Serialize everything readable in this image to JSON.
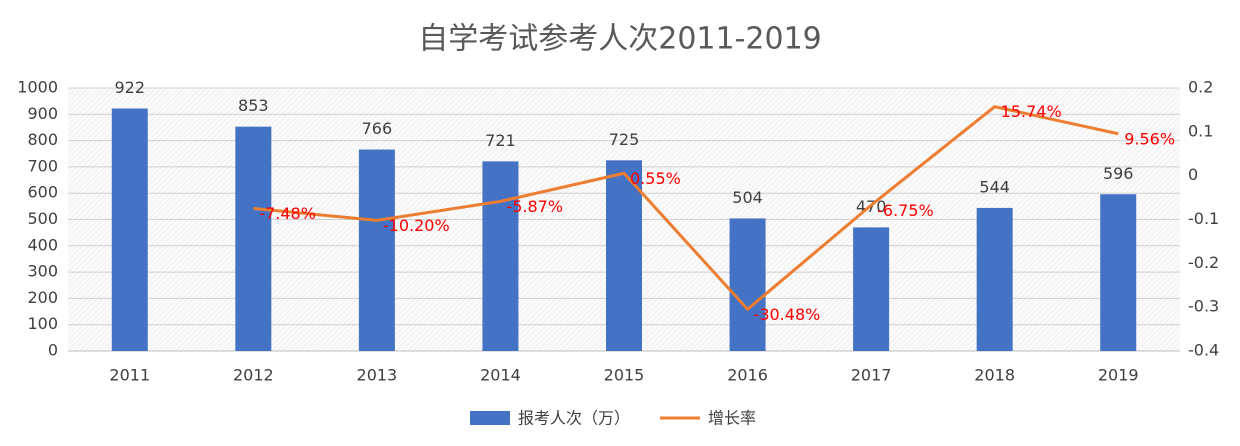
{
  "chart_data": {
    "type": "bar-line",
    "title": "自学考试参考人次2011-2019",
    "categories": [
      "2011",
      "2012",
      "2013",
      "2014",
      "2015",
      "2016",
      "2017",
      "2018",
      "2019"
    ],
    "series": [
      {
        "name": "报考人次（万）",
        "type": "bar",
        "color": "#4472c4",
        "axis": "y",
        "values": [
          922,
          853,
          766,
          721,
          725,
          504,
          470,
          544,
          596
        ]
      },
      {
        "name": "增长率",
        "type": "line",
        "color": "#ed7d31",
        "axis": "y2",
        "label_color": "#ff0000",
        "values": [
          null,
          -0.0748,
          -0.102,
          -0.0587,
          0.0055,
          -0.3048,
          -0.0675,
          0.1574,
          0.0956
        ],
        "value_labels": [
          null,
          "-7.48%",
          "-10.20%",
          "-5.87%",
          "0.55%",
          "-30.48%",
          "-6.75%",
          "15.74%",
          "9.56%"
        ]
      }
    ],
    "ylim": [
      0,
      1000
    ],
    "yticks": [
      0,
      100,
      200,
      300,
      400,
      500,
      600,
      700,
      800,
      900,
      1000
    ],
    "y2lim": [
      -0.4,
      0.2
    ],
    "y2ticks": [
      -0.4,
      -0.3,
      -0.2,
      -0.1,
      0,
      0.1,
      0.2
    ],
    "grid": true,
    "legend": "bottom"
  }
}
